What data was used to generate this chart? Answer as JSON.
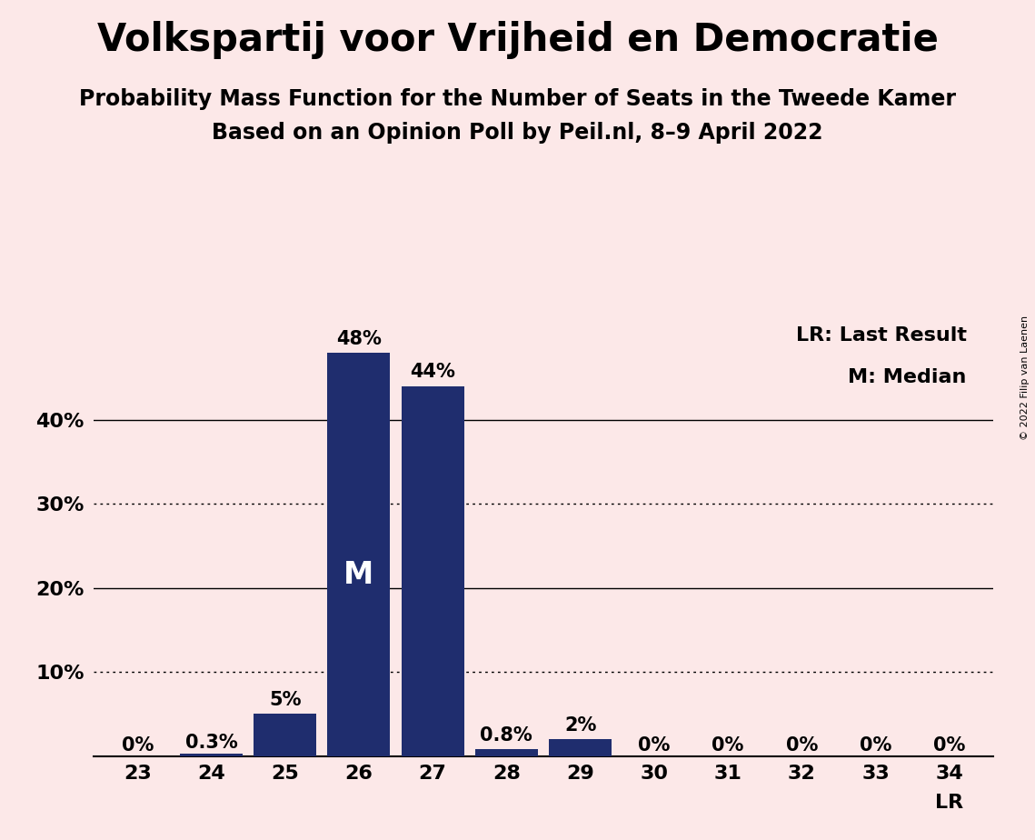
{
  "title": "Volkspartij voor Vrijheid en Democratie",
  "subtitle1": "Probability Mass Function for the Number of Seats in the Tweede Kamer",
  "subtitle2": "Based on an Opinion Poll by Peil.nl, 8–9 April 2022",
  "copyright": "© 2022 Filip van Laenen",
  "categories": [
    23,
    24,
    25,
    26,
    27,
    28,
    29,
    30,
    31,
    32,
    33,
    34
  ],
  "values": [
    0.0,
    0.3,
    5.0,
    48.0,
    44.0,
    0.8,
    2.0,
    0.0,
    0.0,
    0.0,
    0.0,
    0.0
  ],
  "labels": [
    "0%",
    "0.3%",
    "5%",
    "48%",
    "44%",
    "0.8%",
    "2%",
    "0%",
    "0%",
    "0%",
    "0%",
    "0%"
  ],
  "bar_color": "#1f2d6e",
  "background_color": "#fce8e8",
  "lr_seat": 34,
  "median_seat": 26,
  "median_label": "M",
  "legend_lr": "LR: Last Result",
  "legend_m": "M: Median",
  "ylim": [
    0,
    55
  ],
  "dotted_lines": [
    10,
    30
  ],
  "solid_lines": [
    20,
    40
  ],
  "title_fontsize": 30,
  "subtitle_fontsize": 17,
  "tick_fontsize": 16,
  "label_fontsize": 15,
  "legend_fontsize": 16,
  "lr_label_fontsize": 16
}
